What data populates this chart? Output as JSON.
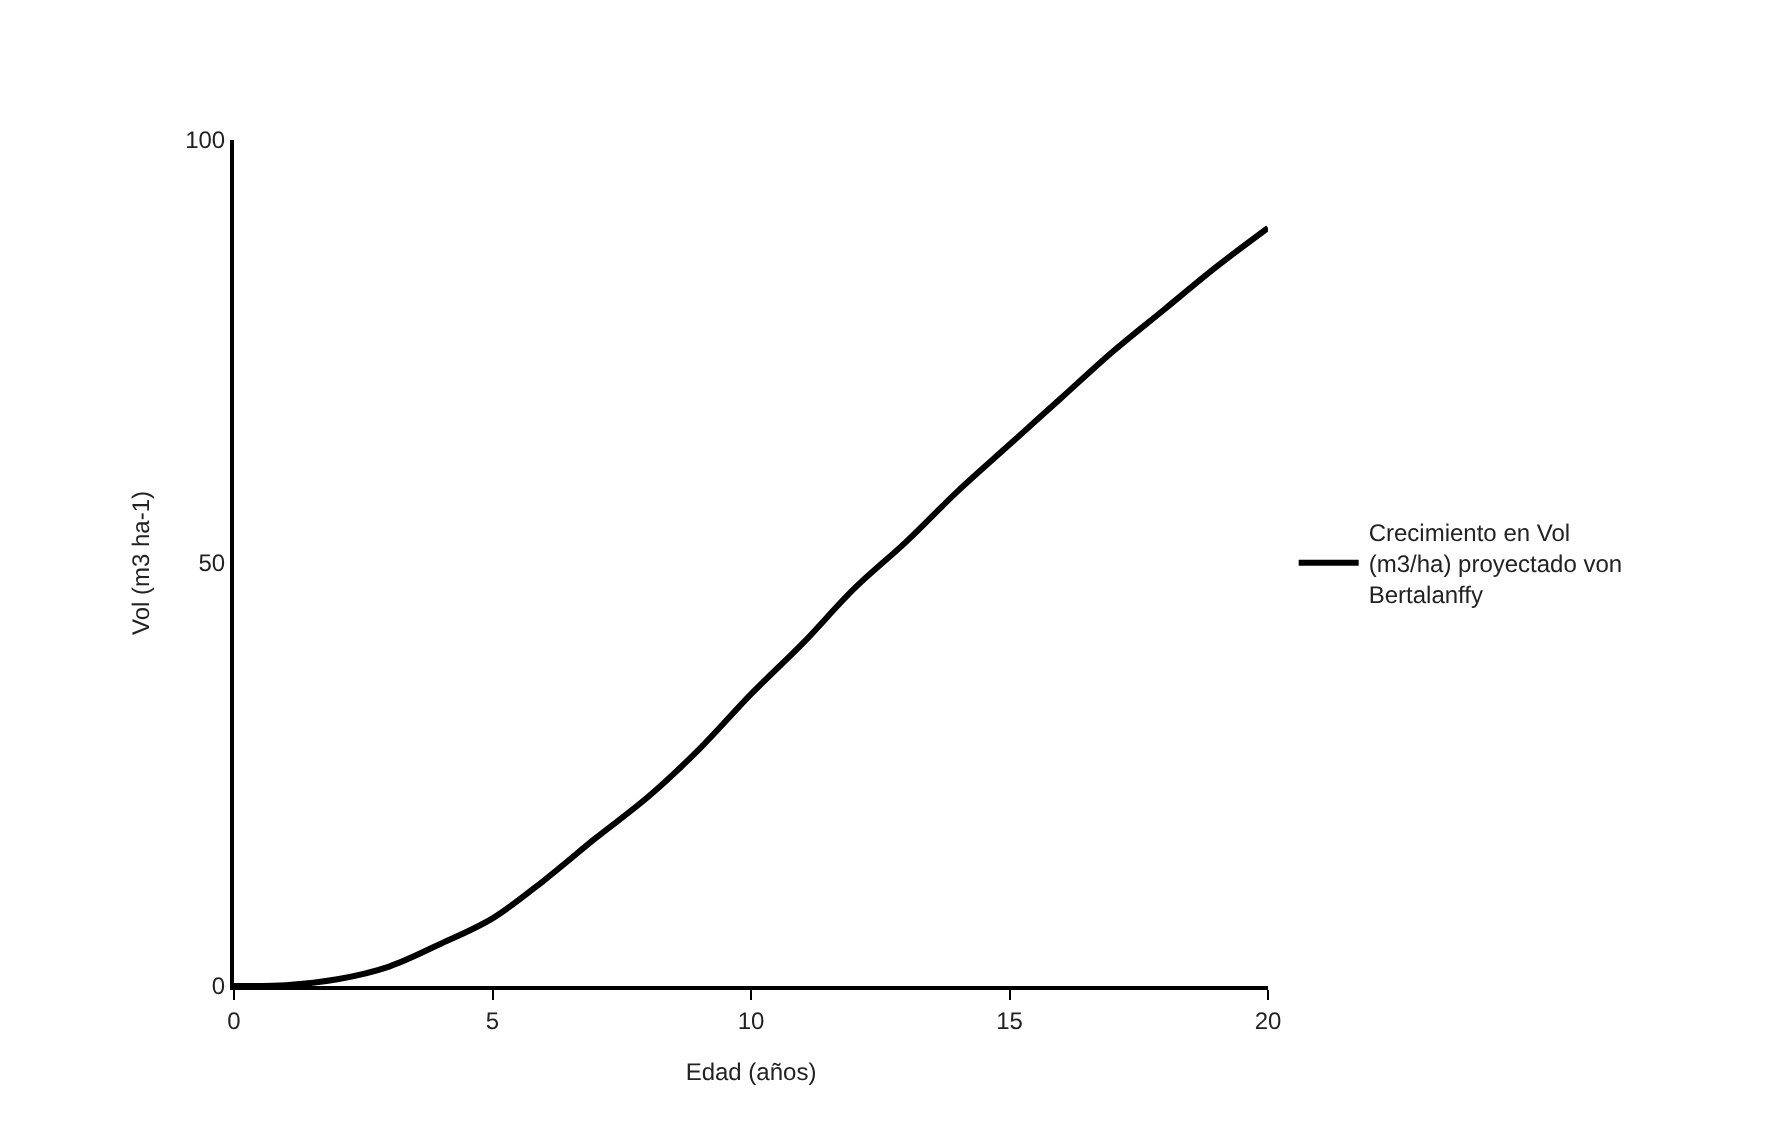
{
  "chart_data": {
    "type": "line",
    "xlabel": "Edad (años)",
    "ylabel": "Vol (m3 ha-1)",
    "x": [
      0,
      1,
      2,
      3,
      4,
      5,
      6,
      7,
      8,
      9,
      10,
      11,
      12,
      13,
      14,
      15,
      16,
      17,
      18,
      19,
      20
    ],
    "series": [
      {
        "name": "Crecimiento en Vol (m3/ha) proyectado von Bertalanffy",
        "color": "#000000",
        "values": [
          0,
          0.1,
          0.8,
          2.3,
          5,
          8,
          12.5,
          17.5,
          22.3,
          28,
          34.5,
          40.5,
          47,
          52.5,
          58.5,
          64,
          69.5,
          75,
          80,
          85,
          89.6
        ]
      }
    ],
    "xlim": [
      0,
      20
    ],
    "xticks": [
      0,
      5,
      10,
      15,
      20
    ],
    "ylim": [
      0,
      100
    ],
    "yticks": [
      0,
      50,
      100
    ],
    "legend": "right",
    "marker": "none",
    "line_style": "solid"
  }
}
